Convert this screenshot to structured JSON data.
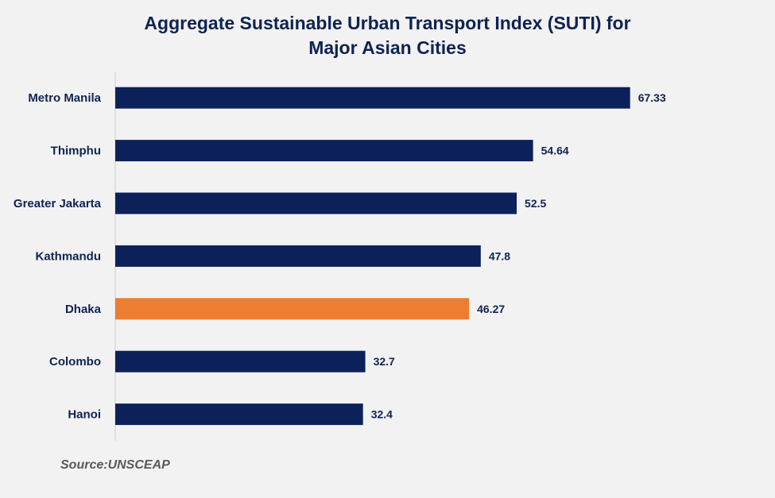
{
  "chart_data": {
    "type": "bar",
    "orientation": "horizontal",
    "title_lines": [
      "Aggregate Sustainable Urban Transport Index (SUTI) for",
      "Major Asian Cities"
    ],
    "categories": [
      "Metro Manila",
      "Thimphu",
      "Greater Jakarta",
      "Kathmandu",
      "Dhaka",
      "Colombo",
      "Hanoi"
    ],
    "values": [
      67.33,
      54.64,
      52.5,
      47.8,
      46.27,
      32.7,
      32.4
    ],
    "value_labels": [
      "67.33",
      "54.64",
      "52.5",
      "47.8",
      "46.27",
      "32.7",
      "32.4"
    ],
    "highlight": "Dhaka",
    "xlim": [
      0,
      70
    ],
    "xlabel": "",
    "ylabel": "",
    "grid": false,
    "legend": "none",
    "source": "Source:UNSCEAP"
  },
  "colors": {
    "bar": "#0c2159",
    "highlight": "#ed7d31",
    "text": "#0f2352",
    "axis": "#d9d9d9",
    "source": "#595959"
  }
}
